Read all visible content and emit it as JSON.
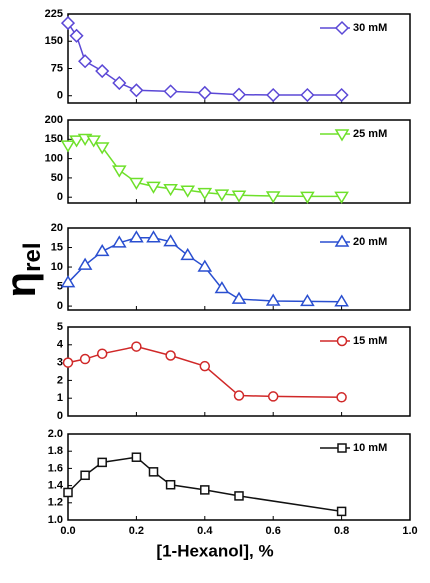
{
  "chart_data": [
    {
      "type": "line",
      "ylim": [
        -20,
        225
      ],
      "yticks": [
        0,
        75,
        150,
        225
      ],
      "legend": "upper right",
      "x": [
        0,
        0.025,
        0.05,
        0.1,
        0.15,
        0.2,
        0.3,
        0.4,
        0.5,
        0.6,
        0.7,
        0.8
      ],
      "series": [
        {
          "name": "30 mM",
          "color": "#5b48d6",
          "marker": "diamond",
          "values": [
            200,
            165,
            95,
            68,
            35,
            15,
            12,
            8,
            3,
            2,
            2,
            2
          ]
        }
      ]
    },
    {
      "type": "line",
      "ylim": [
        -15,
        200
      ],
      "yticks": [
        0,
        50,
        100,
        150,
        200
      ],
      "legend": "upper right",
      "x": [
        0,
        0.025,
        0.05,
        0.075,
        0.1,
        0.15,
        0.2,
        0.25,
        0.3,
        0.35,
        0.4,
        0.45,
        0.5,
        0.6,
        0.7,
        0.8
      ],
      "series": [
        {
          "name": "25 mM",
          "color": "#6ee02a",
          "marker": "triangle-down",
          "values": [
            135,
            148,
            152,
            148,
            130,
            70,
            38,
            28,
            22,
            18,
            12,
            8,
            5,
            3,
            2,
            2
          ]
        }
      ]
    },
    {
      "type": "line",
      "ylim": [
        -1,
        20
      ],
      "yticks": [
        0,
        5,
        10,
        15,
        20
      ],
      "legend": "upper right",
      "x": [
        0,
        0.05,
        0.1,
        0.15,
        0.2,
        0.25,
        0.3,
        0.35,
        0.4,
        0.45,
        0.5,
        0.6,
        0.7,
        0.8
      ],
      "series": [
        {
          "name": "20 mM",
          "color": "#2a4fd0",
          "marker": "triangle-up",
          "values": [
            6,
            10.5,
            14,
            16.2,
            17.5,
            17.5,
            16.5,
            13,
            10,
            4.5,
            1.8,
            1.3,
            1.2,
            1.1
          ]
        }
      ]
    },
    {
      "type": "line",
      "ylim": [
        0,
        5
      ],
      "yticks": [
        0,
        1,
        2,
        3,
        4,
        5
      ],
      "legend": "upper right",
      "x": [
        0,
        0.05,
        0.1,
        0.2,
        0.3,
        0.4,
        0.5,
        0.6,
        0.8
      ],
      "series": [
        {
          "name": "15 mM",
          "color": "#d02828",
          "marker": "circle",
          "values": [
            3.0,
            3.2,
            3.5,
            3.9,
            3.4,
            2.8,
            1.15,
            1.1,
            1.05
          ]
        }
      ]
    },
    {
      "type": "line",
      "ylim": [
        1.0,
        2.0
      ],
      "yticks": [
        {
          "value": 1.0,
          "label": "1.0"
        },
        1.2,
        1.4,
        1.6,
        1.8,
        {
          "value": 2.0,
          "label": "2.0"
        }
      ],
      "legend": "upper right",
      "xlim": [
        0,
        1
      ],
      "xticks": [
        {
          "value": 0,
          "label": "0.0"
        },
        0.2,
        0.4,
        0.6,
        0.8,
        {
          "value": 1.0,
          "label": "1.0"
        }
      ],
      "x": [
        0,
        0.05,
        0.1,
        0.2,
        0.25,
        0.3,
        0.4,
        0.5,
        0.8
      ],
      "series": [
        {
          "name": "10 mM",
          "color": "#111111",
          "marker": "square",
          "values": [
            1.32,
            1.52,
            1.67,
            1.73,
            1.56,
            1.41,
            1.35,
            1.28,
            1.1
          ]
        }
      ]
    }
  ],
  "xlabel": "[1-Hexanol], %",
  "ylabel": "η",
  "ylabel_subscript": "rel"
}
